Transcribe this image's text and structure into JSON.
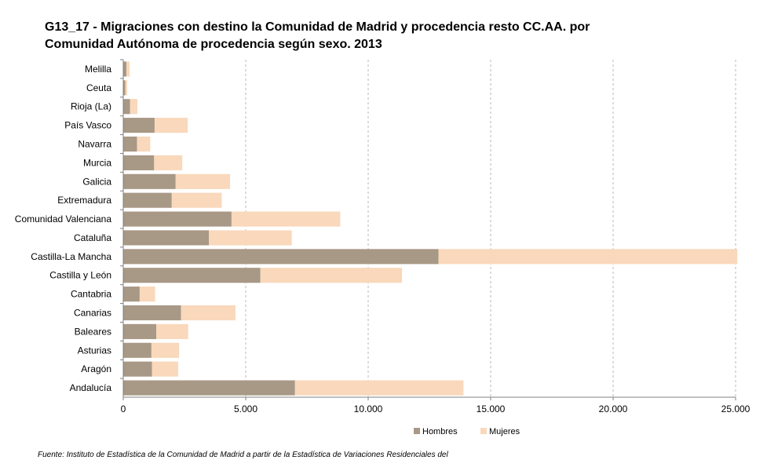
{
  "title_line1": "G13_17 - Migraciones con destino la Comunidad de Madrid y procedencia resto CC.AA. por",
  "title_line2": "Comunidad Autónoma de procedencia según sexo. 2013",
  "source": "Fuente: Instituto de Estadística de la Comunidad de Madrid a partir de la Estadística de Variaciones Residenciales del",
  "colors": {
    "hombres": "#a89886",
    "mujeres": "#f9d8bb",
    "grid": "#b8b8b8",
    "axis": "#808080"
  },
  "chart_data": {
    "type": "bar",
    "orientation": "horizontal",
    "stacked": true,
    "categories": [
      "Melilla",
      "Ceuta",
      "Rioja (La)",
      "País Vasco",
      "Navarra",
      "Murcia",
      "Galicia",
      "Extremadura",
      "Comunidad Valenciana",
      "Cataluña",
      "Castilla-La Mancha",
      "Castilla y León",
      "Cantabria",
      "Canarias",
      "Baleares",
      "Asturias",
      "Aragón",
      "Andalucía"
    ],
    "series": [
      {
        "name": "Hombres",
        "color": "#a89886",
        "values": [
          130,
          80,
          280,
          1280,
          560,
          1260,
          2140,
          1980,
          4420,
          3500,
          12870,
          5600,
          670,
          2360,
          1350,
          1150,
          1170,
          7010
        ]
      },
      {
        "name": "Mujeres",
        "color": "#f9d8bb",
        "values": [
          130,
          80,
          300,
          1350,
          540,
          1150,
          2220,
          2040,
          4440,
          3380,
          12200,
          5780,
          630,
          2220,
          1300,
          1130,
          1070,
          6880
        ]
      }
    ],
    "xlim": [
      0,
      25000
    ],
    "xticks": [
      0,
      5000,
      10000,
      15000,
      20000,
      25000
    ],
    "xtick_labels": [
      "0",
      "5.000",
      "10.000",
      "15.000",
      "20.000",
      "25.000"
    ],
    "grid": true,
    "legend": "bottom"
  }
}
